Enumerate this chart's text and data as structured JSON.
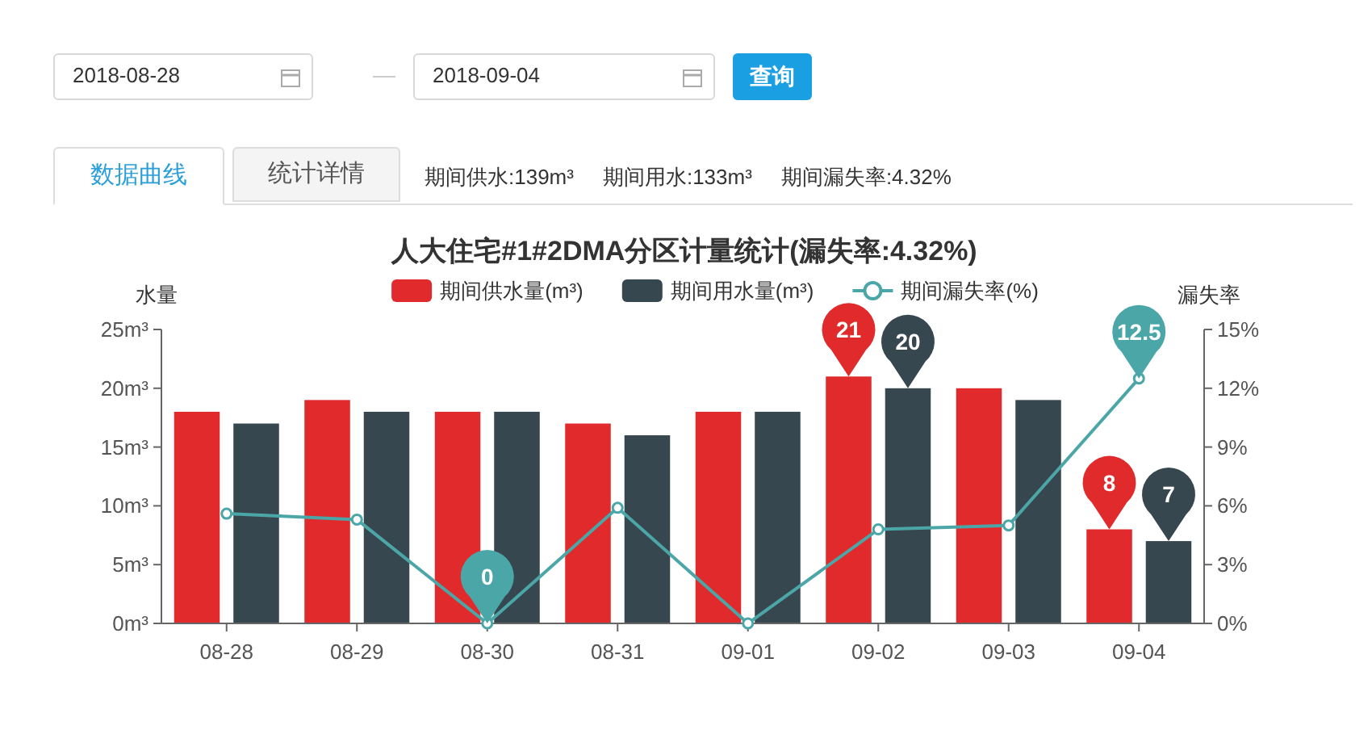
{
  "chart_data": [
    {
      "type": "other",
      "annotations": [
        "2018-08-28",
        "2018-09-04",
        "查询",
        "数据曲线",
        "统计详情",
        "期间供水:139m³",
        "期间用水:133m³",
        "期间漏失率:4.32%"
      ]
    },
    {
      "type": "bar",
      "title": "人大住宅#1#2DMA分区计量统计(漏失率:4.32%)",
      "ylabel": "水量",
      "y2label": "漏失率",
      "categories": [
        "08-28",
        "08-29",
        "08-30",
        "08-31",
        "09-01",
        "09-02",
        "09-03",
        "09-04"
      ],
      "series": [
        {
          "name": "期间供水量(m³)",
          "type": "bar",
          "color": "#e02a2b",
          "values": [
            18,
            19,
            18,
            17,
            18,
            21,
            20,
            8
          ],
          "value_labels": [
            null,
            null,
            null,
            null,
            null,
            "21",
            null,
            "8"
          ]
        },
        {
          "name": "期间用水量(m³)",
          "type": "bar",
          "color": "#37474f",
          "values": [
            17,
            18,
            18,
            16,
            18,
            20,
            19,
            7
          ],
          "value_labels": [
            null,
            null,
            null,
            null,
            null,
            "20",
            null,
            "7"
          ]
        },
        {
          "name": "期间漏失率(%)",
          "type": "line",
          "axis": "y2",
          "color": "#4ba6a7",
          "values": [
            5.6,
            5.3,
            0,
            5.9,
            0,
            4.8,
            5.0,
            12.5
          ],
          "value_labels": [
            null,
            null,
            "0",
            null,
            null,
            null,
            null,
            "12.5"
          ]
        }
      ],
      "ylim": [
        0,
        25
      ],
      "yticks": [
        {
          "value": 0,
          "label": "0m³"
        },
        {
          "value": 5,
          "label": "5m³"
        },
        {
          "value": 10,
          "label": "10m³"
        },
        {
          "value": 15,
          "label": "15m³"
        },
        {
          "value": 20,
          "label": "20m³"
        },
        {
          "value": 25,
          "label": "25m³"
        }
      ],
      "y2lim": [
        0,
        15
      ],
      "y2ticks": [
        {
          "value": 0,
          "label": "0%"
        },
        {
          "value": 3,
          "label": "3%"
        },
        {
          "value": 6,
          "label": "6%"
        },
        {
          "value": 9,
          "label": "9%"
        },
        {
          "value": 12,
          "label": "12%"
        },
        {
          "value": 15,
          "label": "15%"
        }
      ],
      "legend": "top",
      "grid": false,
      "marker": "circle",
      "line_style": "solid"
    }
  ]
}
